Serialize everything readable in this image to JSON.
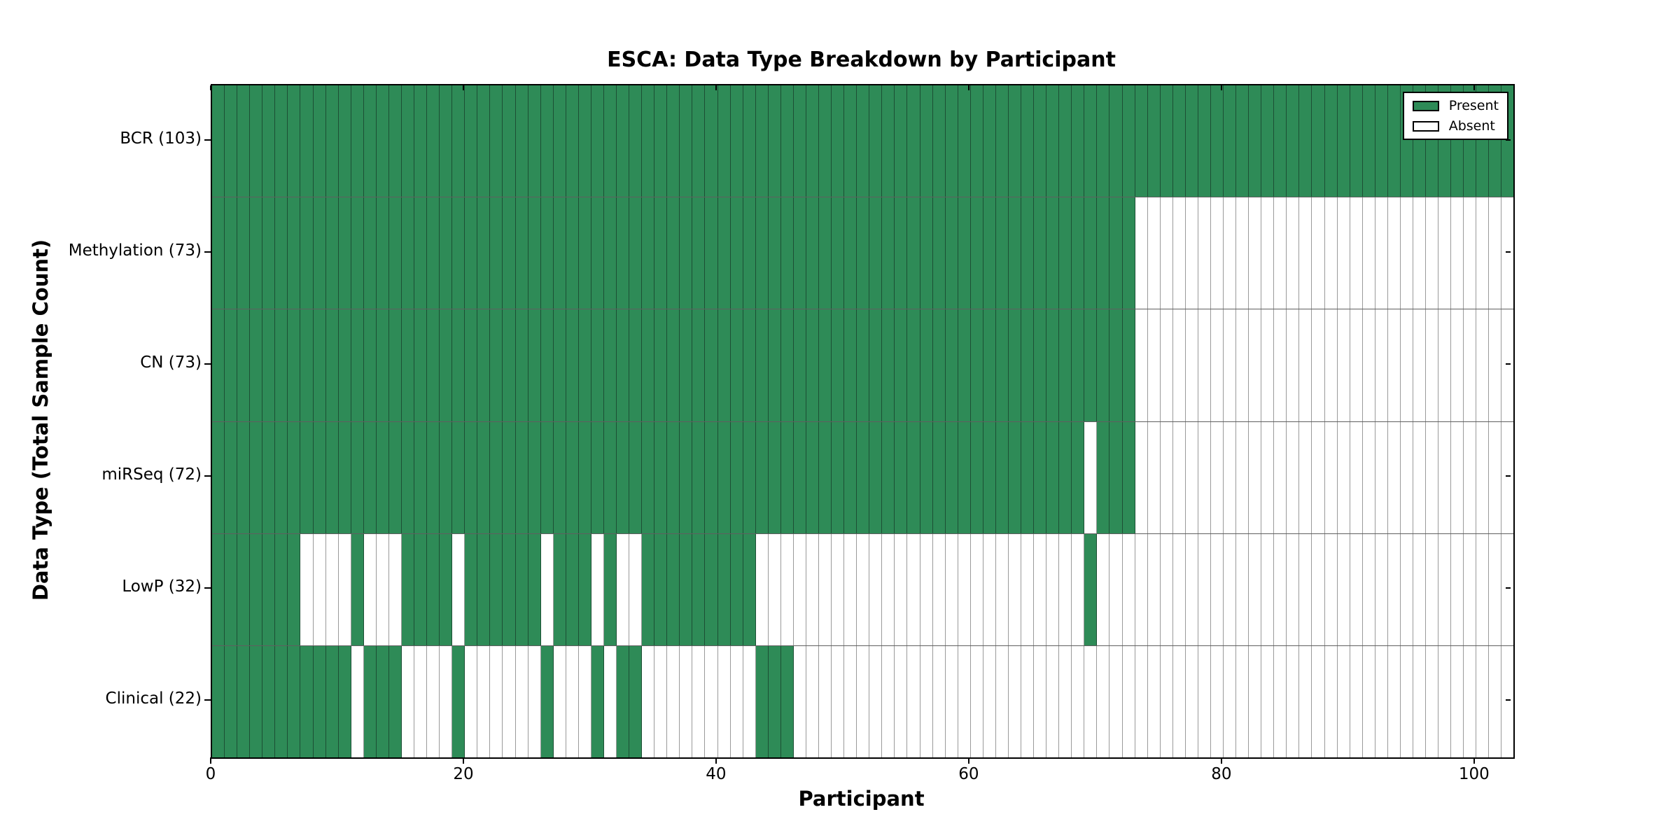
{
  "chart_data": {
    "type": "heatmap",
    "title": "ESCA: Data Type Breakdown by Participant",
    "xlabel": "Participant",
    "ylabel": "Data Type (Total Sample Count)",
    "n_participants": 103,
    "x_ticks": [
      0,
      20,
      40,
      60,
      80,
      100
    ],
    "x_range": [
      0,
      103
    ],
    "grid": "cell-borders",
    "legend": {
      "position": "upper right",
      "present_label": "Present",
      "absent_label": "Absent"
    },
    "colors": {
      "present": "#2e8b57",
      "absent": "#ffffff"
    },
    "rows": [
      {
        "name": "BCR",
        "label": "BCR (103)",
        "total_sample_count": 103,
        "present_ranges": [
          [
            0,
            102
          ]
        ]
      },
      {
        "name": "Methylation",
        "label": "Methylation (73)",
        "total_sample_count": 73,
        "present_ranges": [
          [
            0,
            72
          ]
        ]
      },
      {
        "name": "CN",
        "label": "CN (73)",
        "total_sample_count": 73,
        "present_ranges": [
          [
            0,
            72
          ]
        ]
      },
      {
        "name": "miRSeq",
        "label": "miRSeq (72)",
        "total_sample_count": 72,
        "present_ranges": [
          [
            0,
            68
          ],
          [
            70,
            72
          ]
        ]
      },
      {
        "name": "LowP",
        "label": "LowP (32)",
        "total_sample_count": 32,
        "present_ranges": [
          [
            0,
            6
          ],
          [
            11,
            11
          ],
          [
            15,
            18
          ],
          [
            20,
            25
          ],
          [
            27,
            29
          ],
          [
            31,
            31
          ],
          [
            34,
            42
          ],
          [
            69,
            69
          ]
        ]
      },
      {
        "name": "Clinical",
        "label": "Clinical (22)",
        "total_sample_count": 22,
        "present_ranges": [
          [
            0,
            10
          ],
          [
            12,
            14
          ],
          [
            19,
            19
          ],
          [
            26,
            26
          ],
          [
            30,
            30
          ],
          [
            32,
            33
          ],
          [
            43,
            45
          ]
        ]
      }
    ]
  }
}
